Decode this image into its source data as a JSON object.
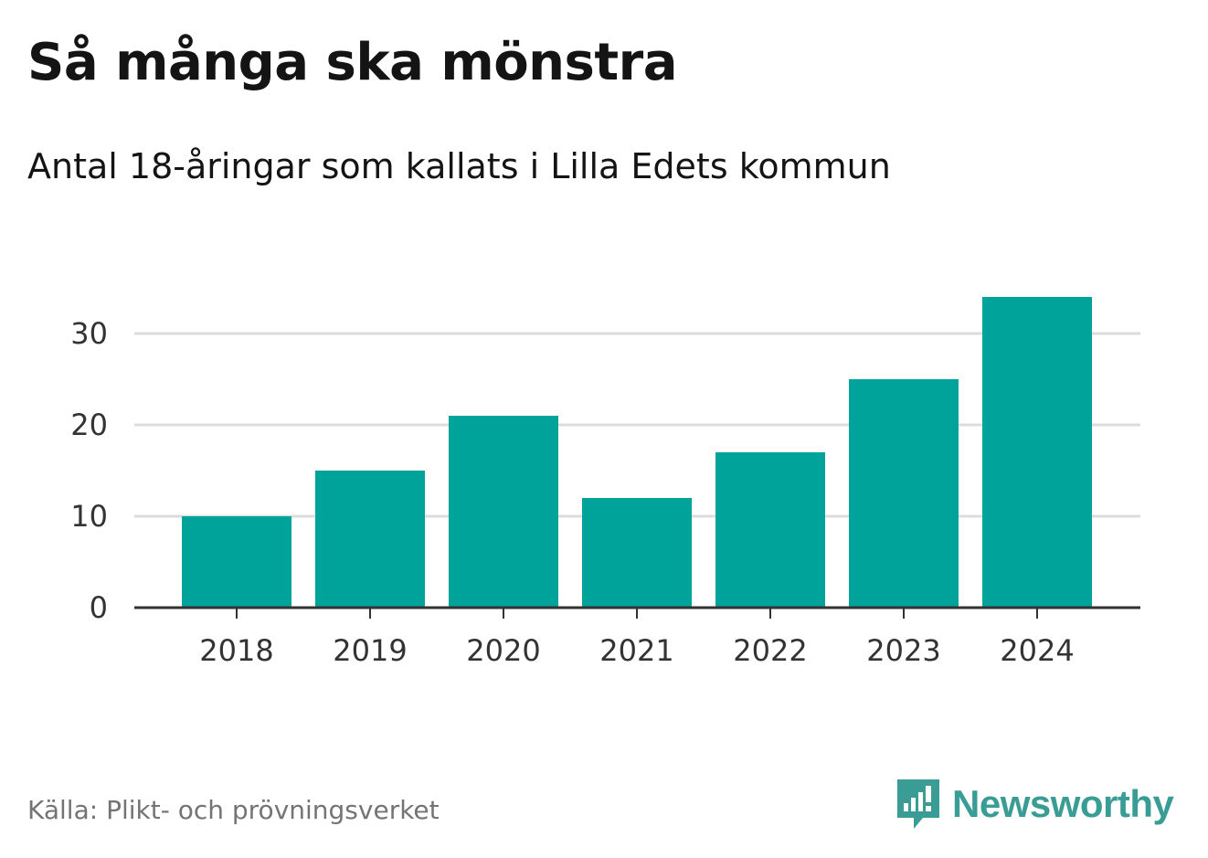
{
  "header": {
    "title": "Så många ska mönstra",
    "subtitle": "Antal 18-åringar som kallats i Lilla Edets kommun"
  },
  "footer": {
    "source": "Källa: Plikt- och prövningsverket",
    "brand": "Newsworthy",
    "brand_icon": "newsworthy-logo-icon"
  },
  "colors": {
    "bar": "#00a39a",
    "grid": "#dcdcdc",
    "axis": "#333333",
    "text": "#141414",
    "tick_text": "#333333",
    "brand": "#3a9d95"
  },
  "chart_data": {
    "type": "bar",
    "title": "Så många ska mönstra",
    "subtitle": "Antal 18-åringar som kallats i Lilla Edets kommun",
    "categories": [
      "2018",
      "2019",
      "2020",
      "2021",
      "2022",
      "2023",
      "2024"
    ],
    "values": [
      10,
      15,
      21,
      12,
      17,
      25,
      34
    ],
    "xlabel": "",
    "ylabel": "",
    "ylim": [
      0,
      34
    ],
    "yticks": [
      0,
      10,
      20,
      30
    ],
    "ytick_labels": [
      "0",
      "10",
      "20",
      "30"
    ],
    "grid": true,
    "legend": "none"
  }
}
